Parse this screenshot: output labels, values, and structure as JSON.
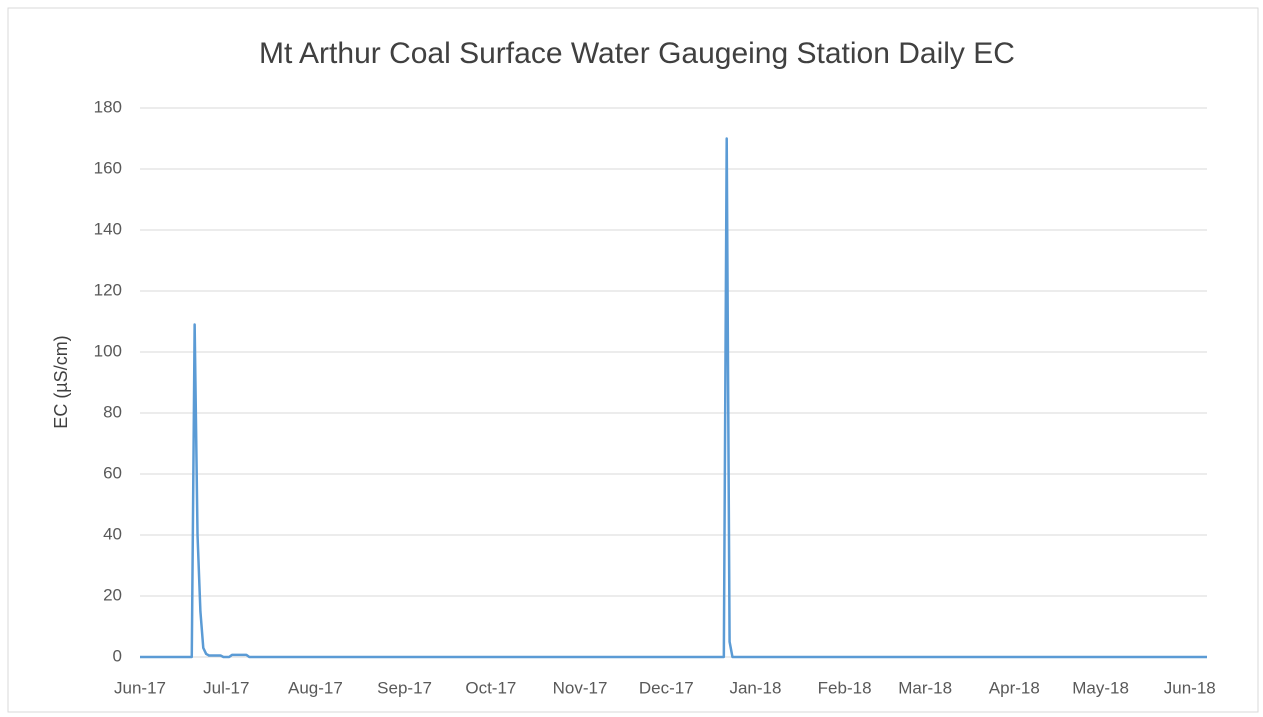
{
  "chart_data": {
    "type": "line",
    "title": "Mt Arthur Coal Surface Water Gaugeing Station Daily EC",
    "y_label": "EC (µS/cm)",
    "x": [
      0,
      18,
      19,
      20,
      21,
      22,
      23,
      24,
      28,
      29,
      31,
      32,
      37,
      38,
      203,
      204,
      205,
      206,
      371
    ],
    "series": [
      {
        "name": "EC",
        "color": "#5b9bd5",
        "values": [
          0,
          0,
          109,
          40,
          15,
          3,
          1,
          0.5,
          0.5,
          0,
          0,
          0.7,
          0.7,
          0,
          0,
          170,
          5,
          0,
          0
        ]
      }
    ],
    "xlim": [
      0,
      371
    ],
    "xticks": [
      {
        "value": 0,
        "label": "Jun-17"
      },
      {
        "value": 30,
        "label": "Jul-17"
      },
      {
        "value": 61,
        "label": "Aug-17"
      },
      {
        "value": 92,
        "label": "Sep-17"
      },
      {
        "value": 122,
        "label": "Oct-17"
      },
      {
        "value": 153,
        "label": "Nov-17"
      },
      {
        "value": 183,
        "label": "Dec-17"
      },
      {
        "value": 214,
        "label": "Jan-18"
      },
      {
        "value": 245,
        "label": "Feb-18"
      },
      {
        "value": 273,
        "label": "Mar-18"
      },
      {
        "value": 304,
        "label": "Apr-18"
      },
      {
        "value": 334,
        "label": "May-18"
      },
      {
        "value": 365,
        "label": "Jun-18"
      }
    ],
    "ylim": [
      0,
      180
    ],
    "yticks": [
      0,
      20,
      40,
      60,
      80,
      100,
      120,
      140,
      160,
      180
    ],
    "grid": true
  }
}
